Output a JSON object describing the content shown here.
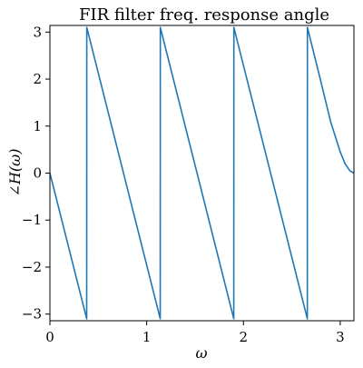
{
  "chart_data": {
    "type": "line",
    "title": "FIR filter freq. response angle",
    "xlabel": "ω",
    "ylabel": "∠H(ω)",
    "xlim": [
      0,
      3.14159
    ],
    "ylim": [
      -3.14159,
      3.14159
    ],
    "xticks": [
      {
        "value": 0,
        "label": "0"
      },
      {
        "value": 1,
        "label": "1"
      },
      {
        "value": 2,
        "label": "2"
      },
      {
        "value": 3,
        "label": "3"
      }
    ],
    "yticks": [
      {
        "value": -3,
        "label": "−3"
      },
      {
        "value": -2,
        "label": "−2"
      },
      {
        "value": -1,
        "label": "−1"
      },
      {
        "value": 0,
        "label": "0"
      },
      {
        "value": 1,
        "label": "1"
      },
      {
        "value": 2,
        "label": "2"
      },
      {
        "value": 3,
        "label": "3"
      }
    ],
    "grid": false,
    "series": [
      {
        "color": "#1f77b4",
        "x": [
          0,
          0.38,
          0.381,
          1.14,
          1.141,
          1.9,
          1.901,
          2.66,
          2.661,
          2.8,
          2.9,
          3.0,
          3.05,
          3.1,
          3.14159
        ],
        "y": [
          0,
          -3.1,
          3.1,
          -3.1,
          3.1,
          -3.1,
          3.1,
          -3.1,
          3.1,
          1.95,
          1.1,
          0.45,
          0.2,
          0.05,
          0
        ]
      }
    ]
  }
}
